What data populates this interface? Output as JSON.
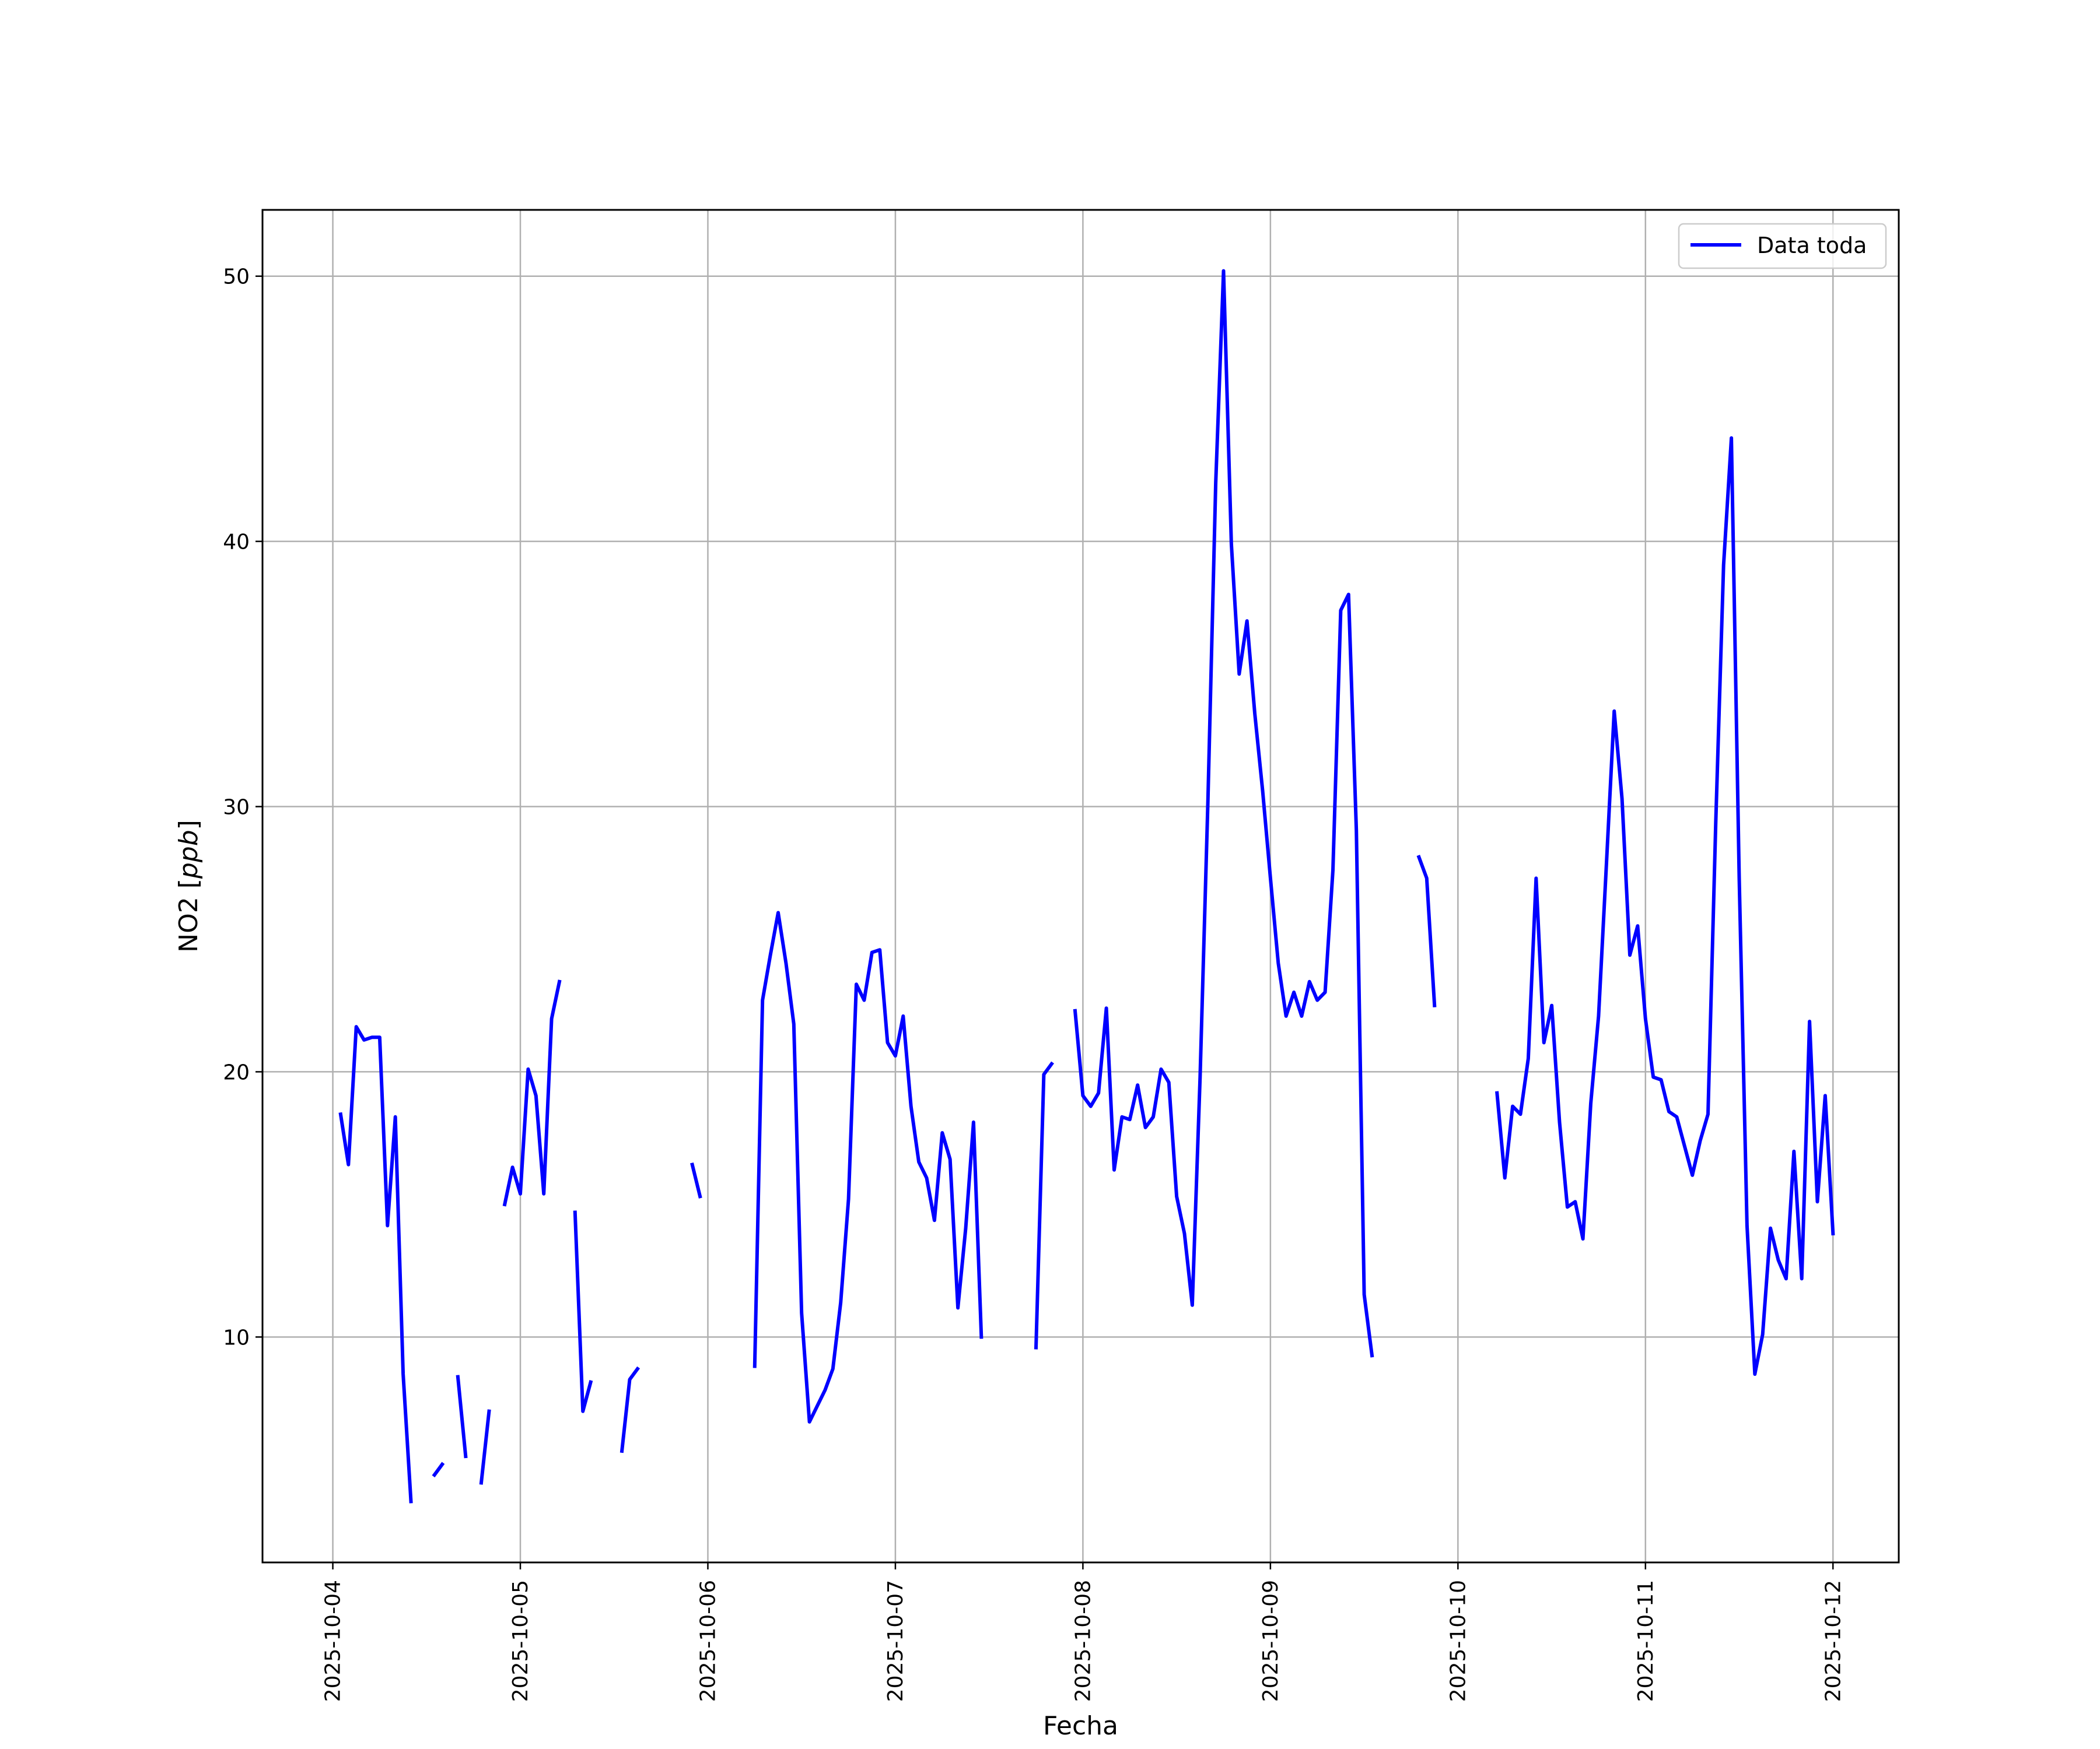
{
  "chart_data": {
    "type": "line",
    "title": "",
    "xlabel": "Fecha",
    "ylabel_main": "NO2 [",
    "ylabel_unit": "ppb",
    "ylabel_end": "]",
    "x_ticks": [
      "2025-10-04",
      "2025-10-05",
      "2025-10-06",
      "2025-10-07",
      "2025-10-08",
      "2025-10-09",
      "2025-10-10",
      "2025-10-11",
      "2025-10-12"
    ],
    "y_ticks": [
      "10",
      "20",
      "30",
      "40",
      "50"
    ],
    "xlim": [
      "2025-10-03 15:00",
      "2025-10-12 08:25"
    ],
    "ylim": [
      1.5,
      52.5
    ],
    "grid": true,
    "legend_position": "top-right",
    "series": [
      {
        "name": "Data toda",
        "color": "#0000ff",
        "segments": [
          [
            [
              "2025-10-04 01:00",
              18.4
            ],
            [
              "2025-10-04 02:00",
              16.5
            ],
            [
              "2025-10-04 03:00",
              21.7
            ],
            [
              "2025-10-04 04:00",
              21.2
            ],
            [
              "2025-10-04 05:00",
              21.3
            ],
            [
              "2025-10-04 06:00",
              21.3
            ],
            [
              "2025-10-04 07:00",
              14.2
            ],
            [
              "2025-10-04 08:00",
              18.3
            ],
            [
              "2025-10-04 09:00",
              8.6
            ],
            [
              "2025-10-04 10:00",
              3.8
            ]
          ],
          [
            [
              "2025-10-04 13:00",
              4.8
            ],
            [
              "2025-10-04 14:00",
              5.2
            ]
          ],
          [
            [
              "2025-10-04 16:00",
              8.5
            ],
            [
              "2025-10-04 17:00",
              5.5
            ]
          ],
          [
            [
              "2025-10-04 19:00",
              4.5
            ],
            [
              "2025-10-04 20:00",
              7.2
            ]
          ],
          [
            [
              "2025-10-04 22:00",
              15.0
            ],
            [
              "2025-10-04 23:00",
              16.4
            ],
            [
              "2025-10-05 00:00",
              15.4
            ],
            [
              "2025-10-05 01:00",
              20.1
            ],
            [
              "2025-10-05 02:00",
              19.1
            ],
            [
              "2025-10-05 03:00",
              15.4
            ],
            [
              "2025-10-05 04:00",
              22.0
            ],
            [
              "2025-10-05 05:00",
              23.4
            ]
          ],
          [
            [
              "2025-10-05 07:00",
              14.7
            ],
            [
              "2025-10-05 08:00",
              7.2
            ],
            [
              "2025-10-05 09:00",
              8.3
            ]
          ],
          [
            [
              "2025-10-05 13:00",
              5.7
            ],
            [
              "2025-10-05 14:00",
              8.4
            ],
            [
              "2025-10-05 15:00",
              8.8
            ]
          ],
          [
            [
              "2025-10-05 22:00",
              16.5
            ],
            [
              "2025-10-05 23:00",
              15.3
            ]
          ],
          [
            [
              "2025-10-06 06:00",
              8.9
            ],
            [
              "2025-10-06 07:00",
              22.7
            ],
            [
              "2025-10-06 08:00",
              24.4
            ],
            [
              "2025-10-06 09:00",
              26.0
            ],
            [
              "2025-10-06 10:00",
              24.1
            ],
            [
              "2025-10-06 11:00",
              21.8
            ],
            [
              "2025-10-06 12:00",
              10.9
            ],
            [
              "2025-10-06 13:00",
              6.8
            ],
            [
              "2025-10-06 14:00",
              7.4
            ],
            [
              "2025-10-06 15:00",
              8.0
            ],
            [
              "2025-10-06 16:00",
              8.8
            ],
            [
              "2025-10-06 17:00",
              11.3
            ],
            [
              "2025-10-06 18:00",
              15.2
            ],
            [
              "2025-10-06 19:00",
              23.3
            ],
            [
              "2025-10-06 20:00",
              22.7
            ],
            [
              "2025-10-06 21:00",
              24.5
            ],
            [
              "2025-10-06 22:00",
              24.6
            ],
            [
              "2025-10-06 23:00",
              21.1
            ],
            [
              "2025-10-07 00:00",
              20.6
            ],
            [
              "2025-10-07 01:00",
              22.1
            ],
            [
              "2025-10-07 02:00",
              18.7
            ],
            [
              "2025-10-07 03:00",
              16.6
            ],
            [
              "2025-10-07 04:00",
              16.0
            ],
            [
              "2025-10-07 05:00",
              14.4
            ],
            [
              "2025-10-07 06:00",
              17.7
            ],
            [
              "2025-10-07 07:00",
              16.7
            ],
            [
              "2025-10-07 08:00",
              11.1
            ],
            [
              "2025-10-07 09:00",
              14.1
            ],
            [
              "2025-10-07 10:00",
              18.1
            ],
            [
              "2025-10-07 11:00",
              10.0
            ]
          ],
          [
            [
              "2025-10-07 18:00",
              9.6
            ],
            [
              "2025-10-07 19:00",
              19.9
            ],
            [
              "2025-10-07 20:00",
              20.3
            ]
          ],
          [
            [
              "2025-10-07 23:00",
              22.3
            ],
            [
              "2025-10-08 00:00",
              19.1
            ],
            [
              "2025-10-08 01:00",
              18.7
            ],
            [
              "2025-10-08 02:00",
              19.2
            ],
            [
              "2025-10-08 03:00",
              22.4
            ],
            [
              "2025-10-08 04:00",
              16.3
            ],
            [
              "2025-10-08 05:00",
              18.3
            ],
            [
              "2025-10-08 06:00",
              18.2
            ],
            [
              "2025-10-08 07:00",
              19.5
            ],
            [
              "2025-10-08 08:00",
              17.9
            ],
            [
              "2025-10-08 09:00",
              18.3
            ],
            [
              "2025-10-08 10:00",
              20.1
            ],
            [
              "2025-10-08 11:00",
              19.6
            ],
            [
              "2025-10-08 12:00",
              15.3
            ],
            [
              "2025-10-08 13:00",
              13.9
            ],
            [
              "2025-10-08 14:00",
              11.2
            ],
            [
              "2025-10-08 15:00",
              19.8
            ],
            [
              "2025-10-08 16:00",
              30.2
            ],
            [
              "2025-10-08 17:00",
              42.2
            ],
            [
              "2025-10-08 18:00",
              50.2
            ],
            [
              "2025-10-08 19:00",
              39.9
            ],
            [
              "2025-10-08 20:00",
              35.0
            ],
            [
              "2025-10-08 21:00",
              37.0
            ],
            [
              "2025-10-08 22:00",
              33.5
            ],
            [
              "2025-10-08 23:00",
              30.6
            ],
            [
              "2025-10-09 00:00",
              27.3
            ],
            [
              "2025-10-09 01:00",
              24.1
            ],
            [
              "2025-10-09 02:00",
              22.1
            ],
            [
              "2025-10-09 03:00",
              23.0
            ],
            [
              "2025-10-09 04:00",
              22.1
            ],
            [
              "2025-10-09 05:00",
              23.4
            ],
            [
              "2025-10-09 06:00",
              22.7
            ],
            [
              "2025-10-09 07:00",
              23.0
            ],
            [
              "2025-10-09 08:00",
              27.6
            ],
            [
              "2025-10-09 09:00",
              37.4
            ],
            [
              "2025-10-09 10:00",
              38.0
            ],
            [
              "2025-10-09 11:00",
              29.1
            ],
            [
              "2025-10-09 12:00",
              11.6
            ],
            [
              "2025-10-09 13:00",
              9.3
            ]
          ],
          [
            [
              "2025-10-09 19:00",
              28.1
            ],
            [
              "2025-10-09 20:00",
              27.3
            ],
            [
              "2025-10-09 21:00",
              22.5
            ]
          ],
          [
            [
              "2025-10-10 05:00",
              19.2
            ],
            [
              "2025-10-10 06:00",
              16.0
            ],
            [
              "2025-10-10 07:00",
              18.7
            ],
            [
              "2025-10-10 08:00",
              18.4
            ],
            [
              "2025-10-10 09:00",
              20.5
            ],
            [
              "2025-10-10 10:00",
              27.3
            ],
            [
              "2025-10-10 11:00",
              21.1
            ],
            [
              "2025-10-10 12:00",
              22.5
            ],
            [
              "2025-10-10 13:00",
              18.1
            ],
            [
              "2025-10-10 14:00",
              14.9
            ],
            [
              "2025-10-10 15:00",
              15.1
            ],
            [
              "2025-10-10 16:00",
              13.7
            ],
            [
              "2025-10-10 17:00",
              18.8
            ],
            [
              "2025-10-10 18:00",
              22.1
            ],
            [
              "2025-10-10 19:00",
              27.8
            ],
            [
              "2025-10-10 20:00",
              33.6
            ],
            [
              "2025-10-10 21:00",
              30.3
            ],
            [
              "2025-10-10 22:00",
              24.4
            ],
            [
              "2025-10-10 23:00",
              25.5
            ],
            [
              "2025-10-11 00:00",
              22.0
            ],
            [
              "2025-10-11 01:00",
              19.8
            ],
            [
              "2025-10-11 02:00",
              19.7
            ],
            [
              "2025-10-11 03:00",
              18.5
            ],
            [
              "2025-10-11 04:00",
              18.3
            ],
            [
              "2025-10-11 05:00",
              17.2
            ],
            [
              "2025-10-11 06:00",
              16.1
            ],
            [
              "2025-10-11 07:00",
              17.4
            ],
            [
              "2025-10-11 08:00",
              18.4
            ],
            [
              "2025-10-11 09:00",
              29.4
            ],
            [
              "2025-10-11 10:00",
              39.1
            ],
            [
              "2025-10-11 11:00",
              43.9
            ],
            [
              "2025-10-11 12:00",
              27.3
            ],
            [
              "2025-10-11 13:00",
              14.2
            ],
            [
              "2025-10-11 14:00",
              8.6
            ],
            [
              "2025-10-11 15:00",
              10.1
            ],
            [
              "2025-10-11 16:00",
              14.1
            ],
            [
              "2025-10-11 17:00",
              12.9
            ],
            [
              "2025-10-11 18:00",
              12.2
            ],
            [
              "2025-10-11 19:00",
              17.0
            ],
            [
              "2025-10-11 20:00",
              12.2
            ],
            [
              "2025-10-11 21:00",
              21.9
            ],
            [
              "2025-10-11 22:00",
              15.1
            ],
            [
              "2025-10-11 23:00",
              19.1
            ],
            [
              "2025-10-12 00:00",
              13.9
            ]
          ]
        ]
      }
    ]
  }
}
